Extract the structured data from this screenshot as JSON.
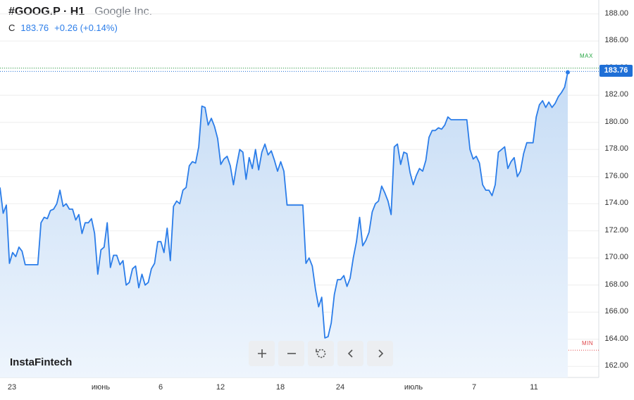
{
  "header": {
    "symbol": "#GOOG.P · H1",
    "company": "Google Inc.",
    "close_label": "C",
    "close_value": "183.76",
    "change": "+0.26 (+0.14%)"
  },
  "price_badge": "183.76",
  "max_label": "MAX",
  "min_label": "MIN",
  "logo": "InstaFintech",
  "toolbar": {
    "buttons": [
      "zoom-in",
      "zoom-out",
      "reset",
      "scroll-left",
      "scroll-right"
    ]
  },
  "colors": {
    "line": "#2b7de9",
    "fill_top": "#c6dcf5",
    "fill_bottom": "#eef5fd",
    "badge": "#1f6fd6",
    "max": "#28a745",
    "min": "#e0484c",
    "grid": "#eeeeee"
  },
  "chart_data": {
    "type": "area",
    "ylim": [
      161,
      189
    ],
    "y_ticks": [
      "188.00",
      "186.00",
      "184.00",
      "182.00",
      "180.00",
      "178.00",
      "176.00",
      "174.00",
      "172.00",
      "170.00",
      "168.00",
      "166.00",
      "164.00",
      "162.00"
    ],
    "x_tick_labels": [
      "23",
      "июнь",
      "6",
      "12",
      "18",
      "24",
      "июль",
      "7",
      "11"
    ],
    "max_value": 184.0,
    "min_value": 163.2,
    "last_value": 183.76,
    "series": [
      {
        "values": [
          175.2,
          173.3,
          173.9,
          169.6,
          170.4,
          170.1,
          170.8,
          170.5,
          169.5,
          169.5,
          169.5,
          169.5,
          169.5,
          172.6,
          173.0,
          172.9,
          173.5,
          173.6,
          174.0,
          175.0,
          173.8,
          174.0,
          173.6,
          173.6,
          172.8,
          173.2,
          171.8,
          172.6,
          172.6,
          172.9,
          171.8,
          168.8,
          170.6,
          170.8,
          172.6,
          169.3,
          170.2,
          170.2,
          169.5,
          169.8,
          168.0,
          168.2,
          169.2,
          169.4,
          167.8,
          168.8,
          168.0,
          168.2,
          169.2,
          169.6,
          171.2,
          171.2,
          170.4,
          172.2,
          169.8,
          173.8,
          174.2,
          174.0,
          175.0,
          175.2,
          176.8,
          177.1,
          177.0,
          178.2,
          181.2,
          181.1,
          179.8,
          180.3,
          179.7,
          178.8,
          176.9,
          177.3,
          177.5,
          176.8,
          175.4,
          176.8,
          178.0,
          177.8,
          175.8,
          177.4,
          176.6,
          178.0,
          176.5,
          177.8,
          178.4,
          177.6,
          177.9,
          177.2,
          176.4,
          177.1,
          176.4,
          173.9,
          173.9,
          173.9,
          173.9,
          173.9,
          173.9,
          169.6,
          170.0,
          169.4,
          167.7,
          166.4,
          167.1,
          164.1,
          164.2,
          165.2,
          167.3,
          168.4,
          168.4,
          168.7,
          167.9,
          168.5,
          170.0,
          171.2,
          173.0,
          170.9,
          171.3,
          171.9,
          173.4,
          174.0,
          174.2,
          175.3,
          174.8,
          174.2,
          173.2,
          178.2,
          178.4,
          176.9,
          177.8,
          177.7,
          176.3,
          175.4,
          176.1,
          176.6,
          176.4,
          177.2,
          178.9,
          179.4,
          179.4,
          179.6,
          179.5,
          179.8,
          180.4,
          180.2,
          180.2,
          180.2,
          180.2,
          180.2,
          180.2,
          178.0,
          177.3,
          177.5,
          177.0,
          175.4,
          175.0,
          175.0,
          174.6,
          175.4,
          177.8,
          178.0,
          178.2,
          176.6,
          177.1,
          177.4,
          176.0,
          176.4,
          177.7,
          178.5,
          178.5,
          178.5,
          180.4,
          181.3,
          181.6,
          181.1,
          181.5,
          181.1,
          181.4,
          181.9,
          182.2,
          182.6,
          183.7
        ]
      }
    ]
  }
}
